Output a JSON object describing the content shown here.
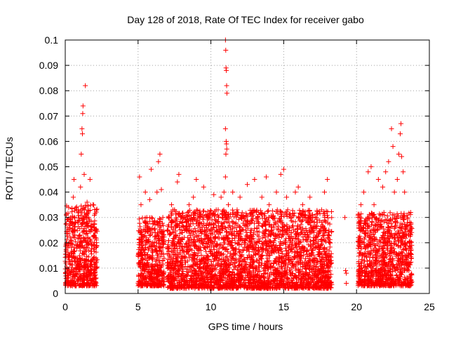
{
  "chart_data": {
    "type": "scatter",
    "title": "Day 128 of 2018, Rate Of TEC Index for receiver gabo",
    "xlabel": "GPS time / hours",
    "ylabel": "ROTI / TECUs",
    "xlim": [
      0,
      25
    ],
    "ylim": [
      0,
      0.1
    ],
    "xticks": [
      0,
      5,
      10,
      15,
      20,
      25
    ],
    "xtick_labels": [
      "0",
      "5",
      "10",
      "15",
      "20",
      "25"
    ],
    "yticks": [
      0,
      0.01,
      0.02,
      0.03,
      0.04,
      0.05,
      0.06,
      0.07,
      0.08,
      0.09,
      0.1
    ],
    "ytick_labels": [
      "0",
      "0.01",
      "0.02",
      "0.03",
      "0.04",
      "0.05",
      "0.06",
      "0.07",
      "0.08",
      "0.09",
      "0.1"
    ],
    "grid": true,
    "marker": "+",
    "color": "#ff0000",
    "series": [
      {
        "name": "ROTI",
        "points": [
          [
            0.05,
            0.012
          ],
          [
            0.15,
            0.018
          ],
          [
            0.25,
            0.009
          ],
          [
            0.35,
            0.022
          ],
          [
            0.45,
            0.015
          ],
          [
            0.5,
            0.03
          ],
          [
            0.55,
            0.038
          ],
          [
            0.6,
            0.045
          ],
          [
            0.7,
            0.028
          ],
          [
            0.8,
            0.012
          ],
          [
            0.9,
            0.033
          ],
          [
            1.0,
            0.02
          ],
          [
            1.05,
            0.042
          ],
          [
            1.1,
            0.055
          ],
          [
            1.15,
            0.065
          ],
          [
            1.18,
            0.063
          ],
          [
            1.2,
            0.071
          ],
          [
            1.22,
            0.074
          ],
          [
            1.3,
            0.047
          ],
          [
            1.38,
            0.082
          ],
          [
            1.5,
            0.036
          ],
          [
            1.6,
            0.03
          ],
          [
            1.7,
            0.045
          ],
          [
            1.8,
            0.025
          ],
          [
            1.9,
            0.035
          ],
          [
            2.0,
            0.02
          ],
          [
            2.1,
            0.012
          ],
          [
            5.0,
            0.015
          ],
          [
            5.1,
            0.046
          ],
          [
            5.2,
            0.035
          ],
          [
            5.3,
            0.022
          ],
          [
            5.5,
            0.04
          ],
          [
            5.6,
            0.03
          ],
          [
            5.8,
            0.037
          ],
          [
            5.9,
            0.049
          ],
          [
            6.0,
            0.02
          ],
          [
            6.1,
            0.028
          ],
          [
            6.3,
            0.04
          ],
          [
            6.4,
            0.052
          ],
          [
            6.5,
            0.055
          ],
          [
            6.6,
            0.041
          ],
          [
            6.7,
            0.03
          ],
          [
            7.0,
            0.025
          ],
          [
            7.3,
            0.035
          ],
          [
            7.5,
            0.033
          ],
          [
            7.7,
            0.044
          ],
          [
            7.8,
            0.047
          ],
          [
            8.0,
            0.025
          ],
          [
            8.2,
            0.03
          ],
          [
            8.5,
            0.035
          ],
          [
            8.8,
            0.038
          ],
          [
            9.0,
            0.045
          ],
          [
            9.2,
            0.028
          ],
          [
            9.5,
            0.042
          ],
          [
            9.8,
            0.03
          ],
          [
            10.0,
            0.022
          ],
          [
            10.2,
            0.039
          ],
          [
            10.5,
            0.033
          ],
          [
            10.7,
            0.038
          ],
          [
            10.9,
            0.04
          ],
          [
            11.0,
            0.1
          ],
          [
            11.02,
            0.096
          ],
          [
            11.04,
            0.089
          ],
          [
            11.06,
            0.088
          ],
          [
            11.08,
            0.082
          ],
          [
            11.1,
            0.079
          ],
          [
            11.0,
            0.065
          ],
          [
            11.05,
            0.06
          ],
          [
            11.07,
            0.059
          ],
          [
            11.09,
            0.057
          ],
          [
            11.03,
            0.055
          ],
          [
            11.0,
            0.046
          ],
          [
            11.2,
            0.035
          ],
          [
            11.5,
            0.04
          ],
          [
            11.8,
            0.033
          ],
          [
            12.0,
            0.038
          ],
          [
            12.3,
            0.03
          ],
          [
            12.5,
            0.043
          ],
          [
            12.8,
            0.025
          ],
          [
            13.0,
            0.045
          ],
          [
            13.2,
            0.03
          ],
          [
            13.5,
            0.038
          ],
          [
            13.8,
            0.046
          ],
          [
            14.0,
            0.035
          ],
          [
            14.2,
            0.025
          ],
          [
            14.5,
            0.04
          ],
          [
            14.8,
            0.047
          ],
          [
            15.0,
            0.049
          ],
          [
            15.2,
            0.038
          ],
          [
            15.5,
            0.03
          ],
          [
            15.8,
            0.04
          ],
          [
            16.0,
            0.042
          ],
          [
            16.3,
            0.035
          ],
          [
            16.5,
            0.03
          ],
          [
            16.8,
            0.038
          ],
          [
            17.0,
            0.03
          ],
          [
            17.3,
            0.028
          ],
          [
            17.6,
            0.033
          ],
          [
            17.8,
            0.04
          ],
          [
            18.0,
            0.045
          ],
          [
            18.1,
            0.025
          ],
          [
            19.2,
            0.03
          ],
          [
            19.25,
            0.009
          ],
          [
            19.3,
            0.008
          ],
          [
            19.3,
            0.004
          ],
          [
            20.1,
            0.03
          ],
          [
            20.3,
            0.035
          ],
          [
            20.5,
            0.04
          ],
          [
            20.8,
            0.048
          ],
          [
            21.0,
            0.05
          ],
          [
            21.2,
            0.035
          ],
          [
            21.5,
            0.045
          ],
          [
            21.8,
            0.042
          ],
          [
            22.0,
            0.048
          ],
          [
            22.2,
            0.052
          ],
          [
            22.4,
            0.065
          ],
          [
            22.5,
            0.058
          ],
          [
            22.6,
            0.04
          ],
          [
            22.8,
            0.045
          ],
          [
            22.9,
            0.055
          ],
          [
            23.0,
            0.063
          ],
          [
            23.05,
            0.067
          ],
          [
            23.1,
            0.054
          ],
          [
            23.2,
            0.048
          ],
          [
            23.3,
            0.04
          ],
          [
            23.5,
            0.03
          ],
          [
            23.7,
            0.02
          ]
        ]
      }
    ],
    "dense_bands": [
      {
        "x": [
          0.0,
          2.2
        ],
        "y": [
          0.003,
          0.035
        ]
      },
      {
        "x": [
          5.0,
          6.8
        ],
        "y": [
          0.003,
          0.03
        ]
      },
      {
        "x": [
          7.0,
          18.3
        ],
        "y": [
          0.002,
          0.033
        ]
      },
      {
        "x": [
          20.1,
          23.8
        ],
        "y": [
          0.003,
          0.032
        ]
      }
    ]
  }
}
